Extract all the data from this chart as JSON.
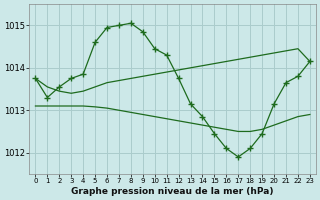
{
  "title": "Graphe pression niveau de la mer (hPa)",
  "bg_color": "#cce8e8",
  "grid_color": "#aacccc",
  "line_color": "#1e6b1e",
  "xlim": [
    -0.5,
    23.5
  ],
  "ylim": [
    1011.5,
    1015.5
  ],
  "yticks": [
    1012,
    1013,
    1014,
    1015
  ],
  "xticks": [
    0,
    1,
    2,
    3,
    4,
    5,
    6,
    7,
    8,
    9,
    10,
    11,
    12,
    13,
    14,
    15,
    16,
    17,
    18,
    19,
    20,
    21,
    22,
    23
  ],
  "series": [
    {
      "x": [
        0,
        1,
        2,
        3,
        4,
        5,
        6,
        7,
        8,
        9,
        10,
        11,
        12,
        13,
        14,
        15,
        16,
        17,
        18,
        19,
        20,
        21,
        22,
        23
      ],
      "y": [
        1013.75,
        1013.3,
        1013.55,
        1013.75,
        1013.85,
        1014.6,
        1014.95,
        1015.0,
        1015.05,
        1014.85,
        1014.45,
        1014.3,
        1013.75,
        1013.15,
        1012.85,
        1012.45,
        1012.1,
        1011.9,
        1012.1,
        1012.45,
        1013.15,
        1013.65,
        1013.8,
        1014.15
      ],
      "marker": true
    },
    {
      "x": [
        0,
        1,
        2,
        3,
        4,
        5,
        6,
        7,
        8,
        9,
        10,
        11,
        12,
        13,
        14,
        15,
        16,
        17,
        18,
        19,
        20,
        21,
        22,
        23
      ],
      "y": [
        1013.75,
        1013.55,
        1013.45,
        1013.4,
        1013.45,
        1013.55,
        1013.65,
        1013.7,
        1013.75,
        1013.8,
        1013.85,
        1013.9,
        1013.95,
        1014.0,
        1014.05,
        1014.1,
        1014.15,
        1014.2,
        1014.25,
        1014.3,
        1014.35,
        1014.4,
        1014.45,
        1014.15
      ],
      "marker": false
    },
    {
      "x": [
        0,
        1,
        2,
        3,
        4,
        5,
        6,
        7,
        8,
        9,
        10,
        11,
        12,
        13,
        14,
        15,
        16,
        17,
        18,
        19,
        20,
        21,
        22,
        23
      ],
      "y": [
        1013.1,
        1013.1,
        1013.1,
        1013.1,
        1013.1,
        1013.08,
        1013.05,
        1013.0,
        1012.95,
        1012.9,
        1012.85,
        1012.8,
        1012.75,
        1012.7,
        1012.65,
        1012.6,
        1012.55,
        1012.5,
        1012.5,
        1012.55,
        1012.65,
        1012.75,
        1012.85,
        1012.9
      ],
      "marker": false
    }
  ]
}
